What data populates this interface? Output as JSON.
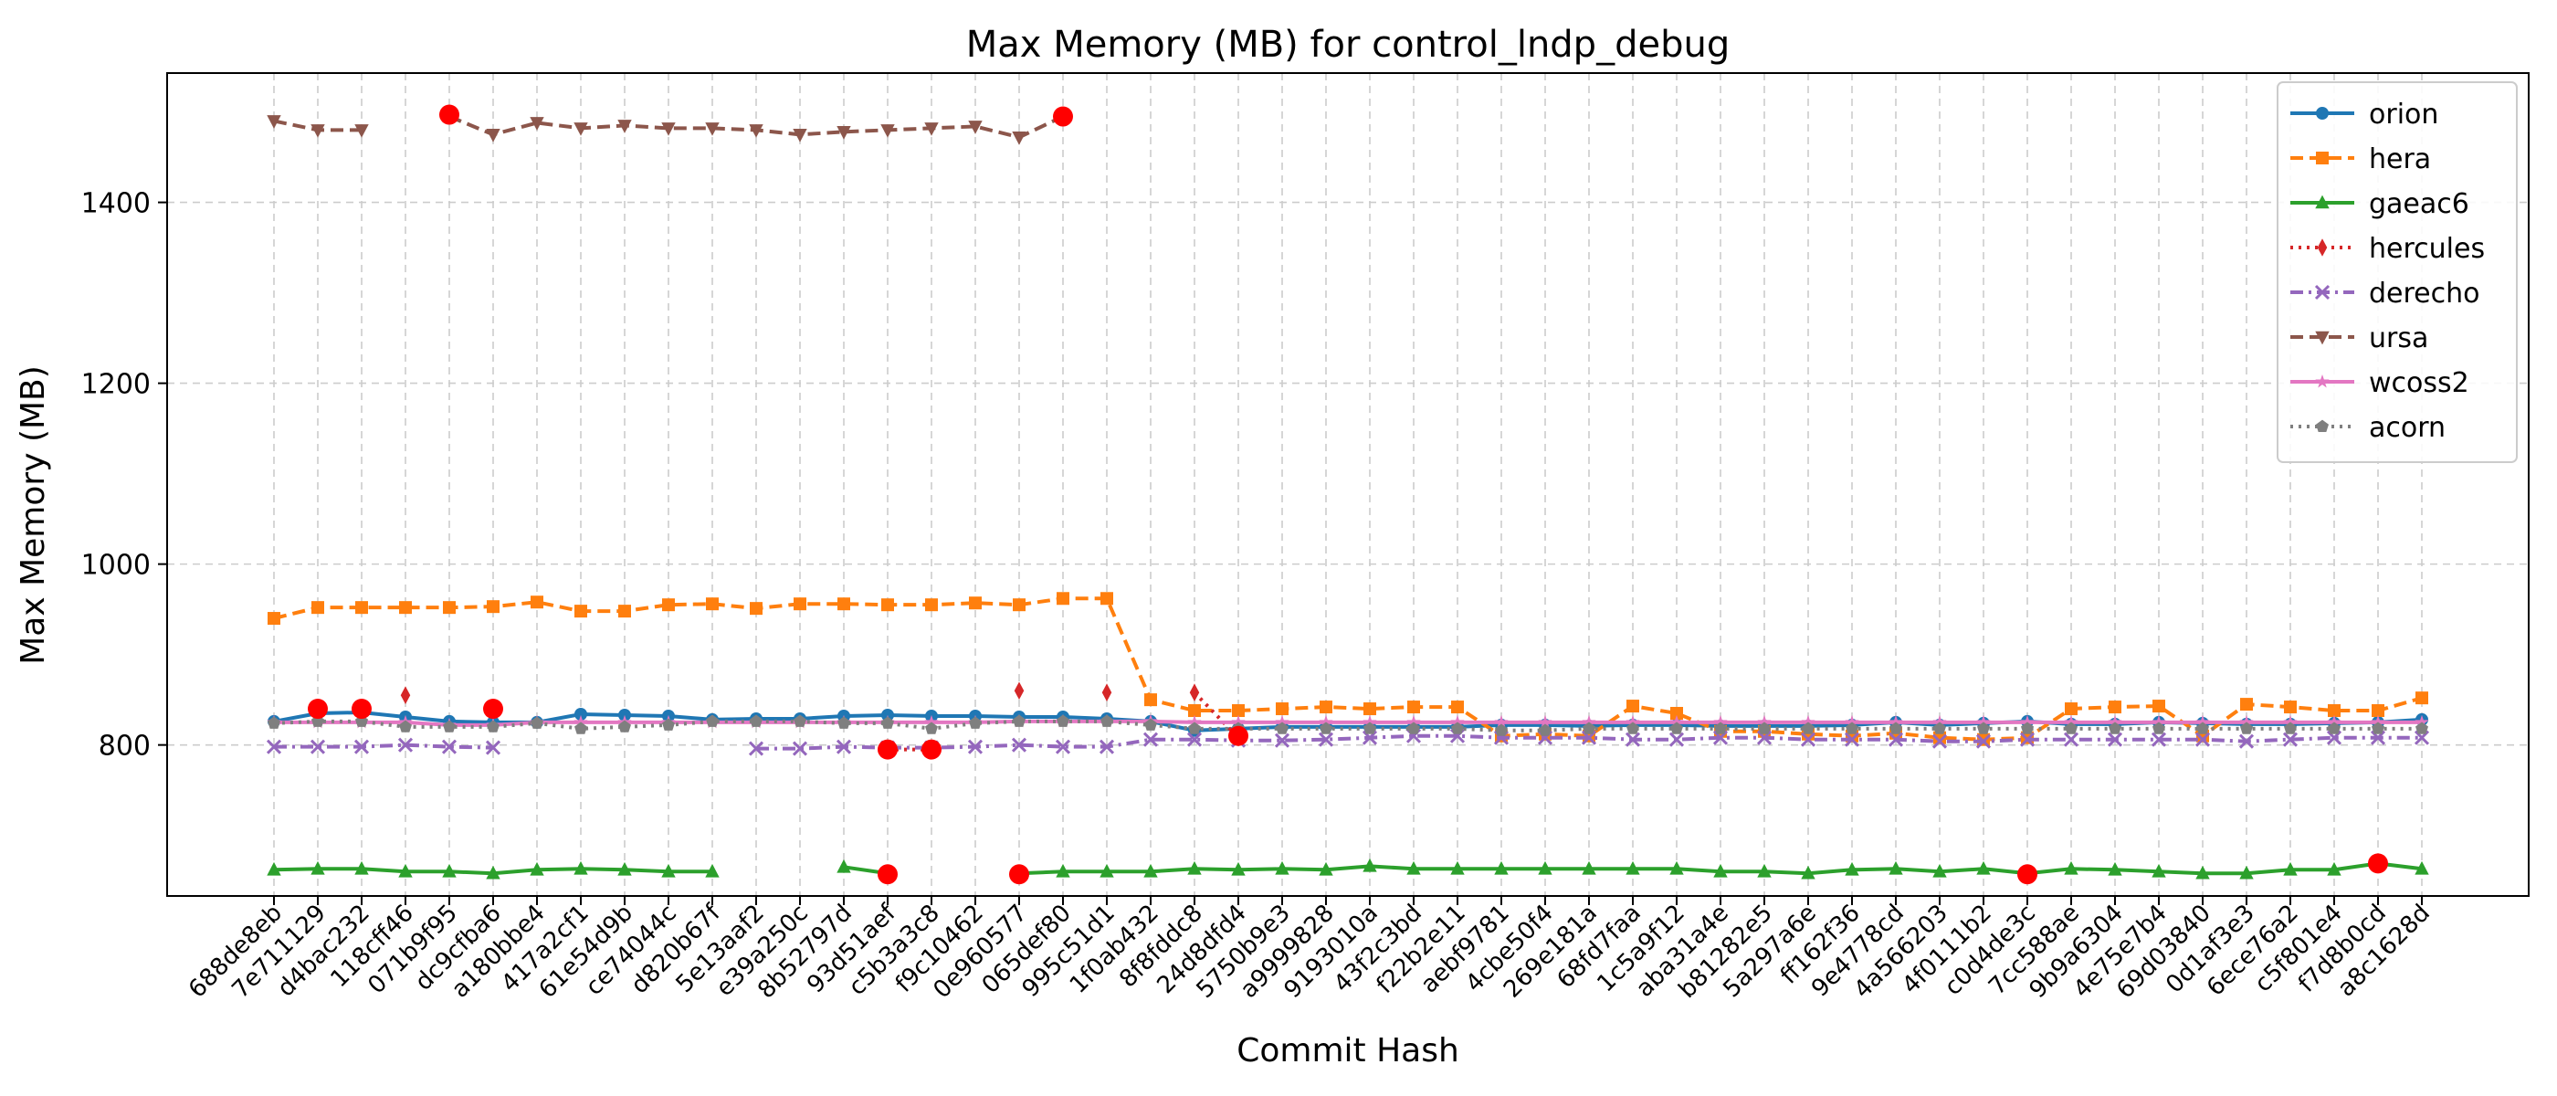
{
  "chart_data": {
    "type": "line",
    "title": "Max Memory (MB) for control_lndp_debug",
    "xlabel": "Commit Hash",
    "ylabel": "Max Memory (MB)",
    "ylim": [
      633,
      1543
    ],
    "yticks": [
      800,
      1000,
      1200,
      1400
    ],
    "grid": true,
    "legend_position": "upper-right",
    "categories": [
      "688de8eb",
      "7e711129",
      "d4bac232",
      "118cff46",
      "071b9f95",
      "dc9cfba6",
      "a180bbe4",
      "417a2cf1",
      "61e54d9b",
      "ce74044c",
      "d820b67f",
      "5e13aaf2",
      "e39a250c",
      "8b52797d",
      "93d51aef",
      "c5b3a3c8",
      "f9c10462",
      "0e960577",
      "065def80",
      "995c51d1",
      "1f0ab432",
      "8f8fddc8",
      "24d8dfd4",
      "5750b9e3",
      "a9999828",
      "9193010a",
      "43f2c3bd",
      "f22b2e11",
      "aebf9781",
      "4cbe50f4",
      "269e181a",
      "68fd7faa",
      "1c5a9f12",
      "aba31a4e",
      "b81282e5",
      "5a297a6e",
      "ff162f36",
      "9e4778cd",
      "4a566203",
      "4f0111b2",
      "c0d4de3c",
      "7cc588ae",
      "9b9a6304",
      "4e75e7b4",
      "69d03840",
      "0d1af3e3",
      "6ece76a2",
      "c5f801e4",
      "f7d8b0cd",
      "a8c1628d"
    ],
    "series": [
      {
        "name": "orion",
        "color": "#1f77b4",
        "dash": "solid",
        "marker": "circle",
        "values": [
          826,
          835,
          836,
          831,
          826,
          825,
          825,
          834,
          833,
          832,
          828,
          829,
          829,
          832,
          833,
          832,
          832,
          831,
          831,
          829,
          826,
          816,
          818,
          820,
          820,
          820,
          820,
          820,
          822,
          822,
          821,
          822,
          822,
          821,
          821,
          821,
          822,
          825,
          822,
          824,
          826,
          823,
          823,
          825,
          824,
          823,
          823,
          824,
          825,
          828
        ]
      },
      {
        "name": "hera",
        "color": "#ff7f0e",
        "dash": "dashed",
        "marker": "square",
        "values": [
          940,
          952,
          952,
          952,
          952,
          953,
          958,
          948,
          948,
          955,
          956,
          951,
          956,
          956,
          955,
          955,
          957,
          955,
          962,
          962,
          850,
          838,
          838,
          840,
          842,
          840,
          842,
          842,
          810,
          812,
          810,
          843,
          835,
          815,
          815,
          812,
          810,
          813,
          808,
          806,
          808,
          840,
          842,
          843,
          810,
          845,
          842,
          838,
          838,
          852
        ]
      },
      {
        "name": "gaeac6",
        "color": "#2ca02c",
        "dash": "solid",
        "marker": "triangle-up",
        "values": [
          662,
          663,
          663,
          660,
          660,
          658,
          662,
          663,
          662,
          660,
          660,
          null,
          null,
          665,
          658,
          null,
          null,
          658,
          660,
          660,
          660,
          663,
          662,
          663,
          662,
          666,
          663,
          663,
          663,
          663,
          663,
          663,
          663,
          660,
          660,
          658,
          662,
          663,
          660,
          663,
          658,
          663,
          662,
          660,
          658,
          658,
          662,
          662,
          669,
          663
        ]
      },
      {
        "name": "hercules",
        "color": "#d62728",
        "dash": "dotted",
        "marker": "diamond",
        "values": [
          null,
          null,
          null,
          855,
          null,
          null,
          null,
          null,
          null,
          null,
          null,
          null,
          null,
          null,
          795,
          795,
          null,
          860,
          null,
          858,
          null,
          858,
          808,
          null,
          null,
          null,
          null,
          null,
          null,
          null,
          null,
          null,
          null,
          null,
          null,
          null,
          null,
          null,
          null,
          null,
          null,
          null,
          null,
          null,
          null,
          null,
          null,
          null,
          null,
          null
        ]
      },
      {
        "name": "derecho",
        "color": "#9467bd",
        "dash": "dashdot",
        "marker": "x",
        "values": [
          798,
          798,
          798,
          800,
          798,
          797,
          null,
          null,
          null,
          null,
          null,
          796,
          796,
          798,
          797,
          797,
          798,
          800,
          798,
          798,
          806,
          806,
          805,
          805,
          806,
          808,
          810,
          810,
          808,
          808,
          808,
          806,
          806,
          808,
          808,
          806,
          806,
          806,
          804,
          804,
          806,
          806,
          806,
          806,
          806,
          804,
          806,
          808,
          808,
          808
        ]
      },
      {
        "name": "ursa",
        "color": "#8c564b",
        "dash": "dashed",
        "marker": "triangle-down",
        "values": [
          1490,
          1480,
          1480,
          null,
          1495,
          1475,
          1488,
          1482,
          1485,
          1482,
          1482,
          1480,
          1475,
          1478,
          1480,
          1482,
          1484,
          1472,
          1495,
          null,
          null,
          null,
          null,
          null,
          null,
          null,
          null,
          null,
          null,
          null,
          null,
          null,
          null,
          null,
          null,
          null,
          null,
          null,
          null,
          null,
          null,
          null,
          null,
          null,
          null,
          null,
          null,
          null,
          null,
          null
        ]
      },
      {
        "name": "wcoss2",
        "color": "#e377c2",
        "dash": "solid",
        "marker": "star",
        "values": [
          825,
          825,
          825,
          825,
          822,
          822,
          825,
          825,
          825,
          825,
          825,
          825,
          825,
          825,
          825,
          825,
          825,
          826,
          826,
          826,
          826,
          825,
          825,
          825,
          825,
          825,
          825,
          825,
          825,
          825,
          825,
          825,
          825,
          825,
          825,
          825,
          825,
          825,
          825,
          825,
          825,
          825,
          825,
          825,
          825,
          825,
          825,
          825,
          825,
          825
        ]
      },
      {
        "name": "acorn",
        "color": "#7f7f7f",
        "dash": "dotted",
        "marker": "pentagon",
        "values": [
          824,
          826,
          826,
          820,
          820,
          820,
          824,
          818,
          820,
          822,
          826,
          826,
          826,
          824,
          824,
          818,
          824,
          826,
          826,
          826,
          822,
          818,
          818,
          818,
          818,
          818,
          818,
          818,
          816,
          816,
          818,
          818,
          818,
          818,
          818,
          818,
          818,
          818,
          818,
          818,
          818,
          818,
          818,
          818,
          818,
          818,
          818,
          818,
          818,
          818
        ]
      }
    ],
    "red_markers": [
      {
        "category": "7e711129",
        "value": 840
      },
      {
        "category": "d4bac232",
        "value": 840
      },
      {
        "category": "071b9f95",
        "value": 1497
      },
      {
        "category": "dc9cfba6",
        "value": 840
      },
      {
        "category": "93d51aef",
        "value": 795
      },
      {
        "category": "93d51aef",
        "value": 657
      },
      {
        "category": "c5b3a3c8",
        "value": 795
      },
      {
        "category": "0e960577",
        "value": 657
      },
      {
        "category": "065def80",
        "value": 1495
      },
      {
        "category": "24d8dfd4",
        "value": 810
      },
      {
        "category": "c0d4de3c",
        "value": 657
      },
      {
        "category": "f7d8b0cd",
        "value": 669
      }
    ]
  }
}
